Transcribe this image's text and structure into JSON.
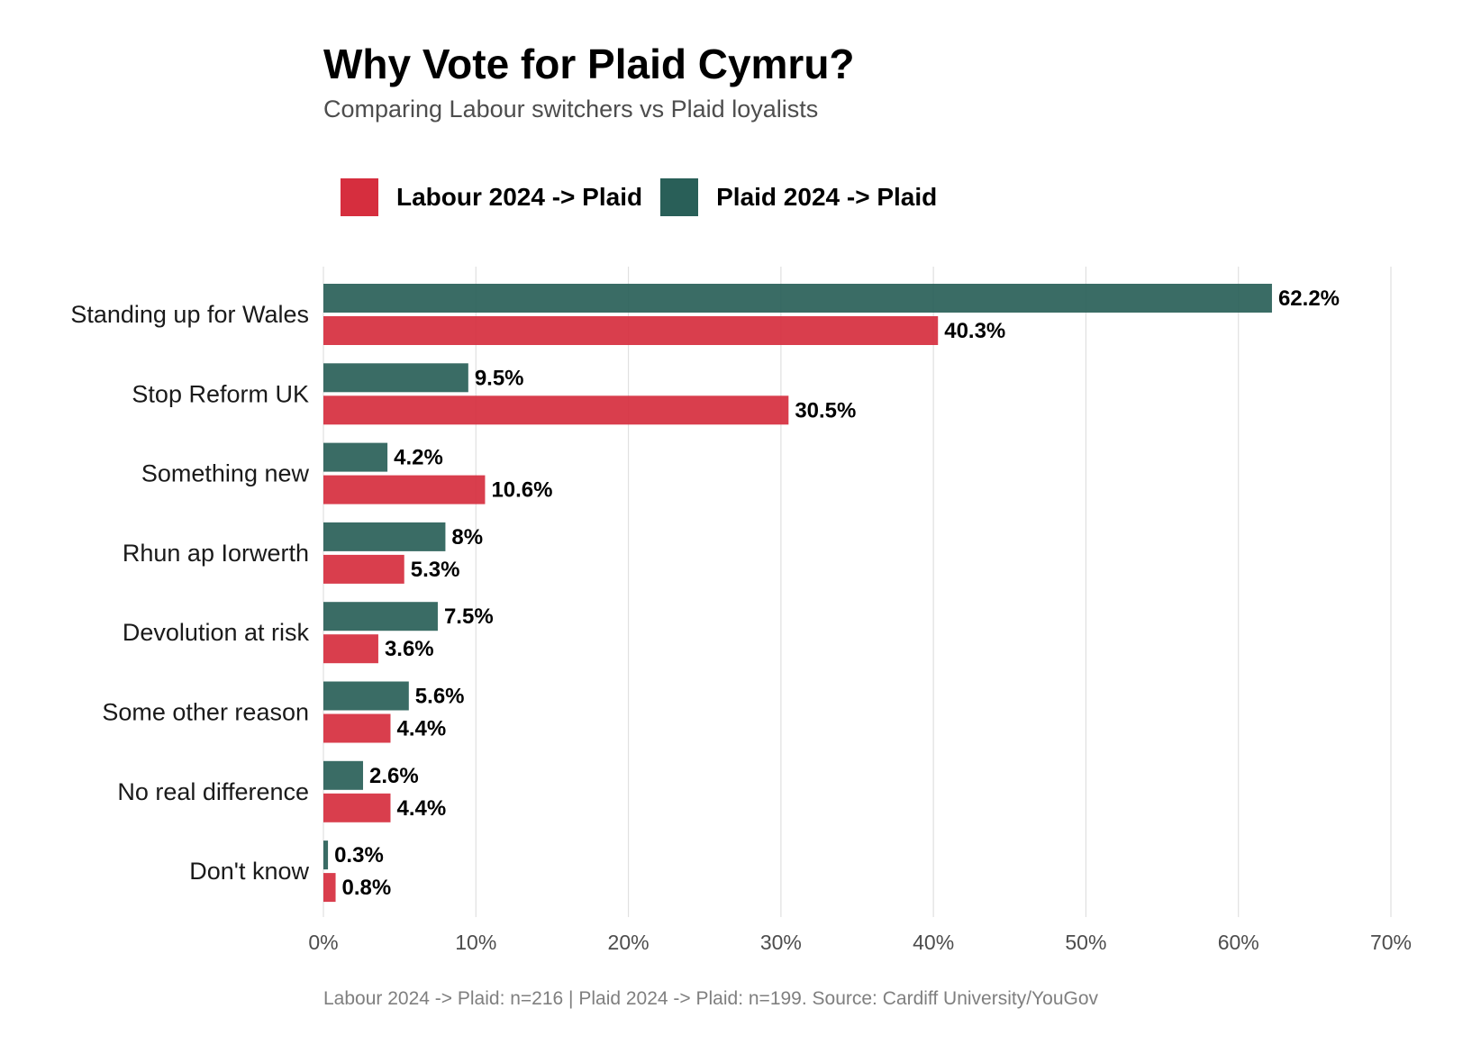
{
  "colors": {
    "labour": "#d62e3e",
    "plaid": "#295f58",
    "grid": "#e0e0e0"
  },
  "chart_data": {
    "type": "bar",
    "orientation": "horizontal",
    "title": "Why Vote for Plaid Cymru?",
    "subtitle": "Comparing Labour switchers vs Plaid loyalists",
    "categories": [
      "Standing up for Wales",
      "Stop Reform UK",
      "Something new",
      "Rhun ap Iorwerth",
      "Devolution at risk",
      "Some other reason",
      "No real difference",
      "Don't know"
    ],
    "series": [
      {
        "name": "Plaid 2024 -> Plaid",
        "key": "plaid",
        "values": [
          62.2,
          9.5,
          4.2,
          8,
          7.5,
          5.6,
          2.6,
          0.3
        ],
        "labels": [
          "62.2%",
          "9.5%",
          "4.2%",
          "8%",
          "7.5%",
          "5.6%",
          "2.6%",
          "0.3%"
        ]
      },
      {
        "name": "Labour 2024 -> Plaid",
        "key": "labour",
        "values": [
          40.3,
          30.5,
          10.6,
          5.3,
          3.6,
          4.4,
          4.4,
          0.8
        ],
        "labels": [
          "40.3%",
          "30.5%",
          "10.6%",
          "5.3%",
          "3.6%",
          "4.4%",
          "4.4%",
          "0.8%"
        ]
      }
    ],
    "legend": [
      "Labour 2024 -> Plaid",
      "Plaid 2024 -> Plaid"
    ],
    "xlim": [
      0,
      70
    ],
    "xticks": [
      0,
      10,
      20,
      30,
      40,
      50,
      60,
      70
    ],
    "xtick_labels": [
      "0%",
      "10%",
      "20%",
      "30%",
      "40%",
      "50%",
      "60%",
      "70%"
    ],
    "xlabel": "",
    "ylabel": "",
    "grid": true,
    "caption": "Labour 2024 -> Plaid: n=216 | Plaid 2024 -> Plaid: n=199. Source: Cardiff University/YouGov"
  }
}
